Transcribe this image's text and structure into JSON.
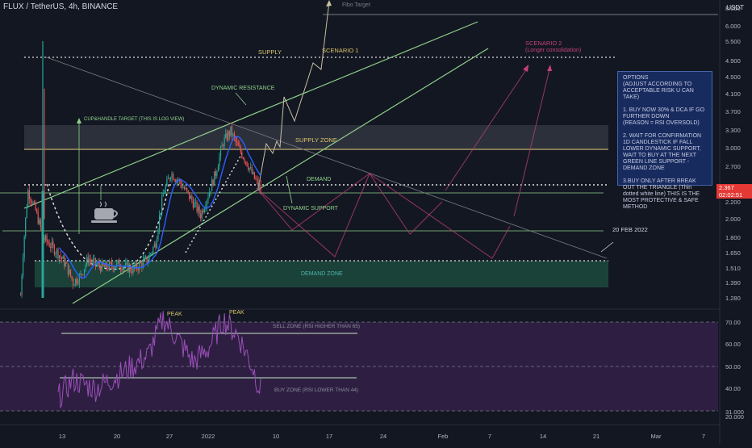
{
  "header": {
    "pair": "FLUX / TetherUS, 4h, BINANCE",
    "currency": "USDT"
  },
  "colors": {
    "background": "#131722",
    "candle_up": "#26a69a",
    "candle_down": "#ef5350",
    "channel": "#8fd18a",
    "supply_line": "#d9c46b",
    "scenario2": "#c2407a",
    "rsi": "#9b4fb8",
    "rsi_band": "#3b2350",
    "demand_zone": "#1e4d40"
  },
  "price_axis": {
    "labels": [
      "8.050",
      "6.000",
      "5.500",
      "4.900",
      "4.500",
      "4.100",
      "3.700",
      "3.300",
      "3.000",
      "2.700",
      "2.200",
      "2.000",
      "1.800",
      "1.650",
      "1.510",
      "1.390",
      "1.280"
    ],
    "current_price": "2.367",
    "countdown": "02:02:51"
  },
  "rsi_axis": {
    "labels": [
      "70.00",
      "60.00",
      "50.00",
      "40.00",
      "31.000",
      "20.000"
    ]
  },
  "time_axis": {
    "labels": [
      "13",
      "20",
      "27",
      "2022",
      "10",
      "17",
      "24",
      "Feb",
      "7",
      "14",
      "21",
      "Mar",
      "7"
    ]
  },
  "annotations": {
    "fibo_target": "Fibo Target",
    "supply": "SUPPLY",
    "scenario1": "SCENARIO 1",
    "scenario2": "SCENARIO 2",
    "scenario2_sub": "(Longer consolidation)",
    "dynamic_resistance": "DYNAMIC RESISTANCE",
    "cup_handle": "CUP&HANDLE TARGET (THIS IS LOG VIEW)",
    "supply_zone": "SUPPLY ZONE",
    "demand": "DEMAND",
    "dynamic_support": "DYNAMIC SUPPORT",
    "date_marker": "20 FEB 2022",
    "demand_zone": "DEMAND ZONE",
    "peak1": "PEAK",
    "peak2": "PEAK",
    "sell_zone": "SELL ZONE (RSI HIGHER THAN 65)",
    "buy_zone": "BUY ZONE (RSI LOWER THAN 44)"
  },
  "options_box": {
    "title": "OPTIONS\n(ADJUST ACCORDING TO ACCEPTABLE RISK U CAN TAKE)",
    "opt1": "1. BUY NOW 30% & DCA IF GO FURTHER DOWN\n(REASON = RSI OVERSOLD)",
    "opt2": "2. WAIT FOR CONFIRMATION\n1D CANDLESTICK IF FALL LOWER DYNAMIC SUPPORT, WAIT TO BUY AT THE NEXT GREEN LINE SUPPORT - DEMAND ZONE",
    "opt3": "3.BUY ONLY AFTER BREAK OUT THE TRIANGLE (Thin dotted white line) THIS IS THE MOST PROTECTIVE & SAFE METHOD"
  },
  "chart_data": {
    "type": "candlestick",
    "title": "FLUX / TetherUS, 4h, BINANCE",
    "close_path": [
      [
        "Dec 7",
        1.3
      ],
      [
        "Dec 8",
        2.35
      ],
      [
        "Dec 9",
        2.1
      ],
      [
        "Dec 10",
        1.8
      ],
      [
        "Dec 12",
        1.65
      ],
      [
        "Dec 13",
        1.55
      ],
      [
        "Dec 14",
        1.4
      ],
      [
        "Dec 15",
        1.45
      ],
      [
        "Dec 16",
        1.6
      ],
      [
        "Dec 17",
        1.55
      ],
      [
        "Dec 18",
        1.52
      ],
      [
        "Dec 20",
        1.55
      ],
      [
        "Dec 22",
        1.5
      ],
      [
        "Dec 24",
        1.6
      ],
      [
        "Dec 25",
        1.75
      ],
      [
        "Dec 26",
        2.3
      ],
      [
        "Dec 27",
        2.6
      ],
      [
        "Dec 28",
        2.5
      ],
      [
        "Dec 30",
        2.2
      ],
      [
        "Dec 31",
        2.05
      ],
      [
        "Jan 1",
        2.3
      ],
      [
        "Jan 2",
        2.6
      ],
      [
        "Jan 3",
        3.1
      ],
      [
        "Jan 4",
        3.3
      ],
      [
        "Jan 5",
        3.0
      ],
      [
        "Jan 6",
        2.8
      ],
      [
        "Jan 7",
        2.55
      ],
      [
        "Jan 8",
        2.37
      ]
    ],
    "rsi_path": [
      [
        "Dec 12",
        36
      ],
      [
        "Dec 14",
        44
      ],
      [
        "Dec 17",
        40
      ],
      [
        "Dec 21",
        48
      ],
      [
        "Dec 24",
        55
      ],
      [
        "Dec 26",
        72
      ],
      [
        "Dec 28",
        62
      ],
      [
        "Dec 30",
        52
      ],
      [
        "Jan 1",
        58
      ],
      [
        "Jan 3",
        71
      ],
      [
        "Jan 5",
        64
      ],
      [
        "Jan 7",
        49
      ],
      [
        "Jan 8",
        39
      ]
    ],
    "levels": {
      "supply_line": 4.9,
      "supply_zone": [
        2.95,
        3.35
      ],
      "demand_line": 2.38,
      "demand_mid": 1.85,
      "demand_zone": [
        1.4,
        1.6
      ]
    },
    "rsi_zones": {
      "sell": 65,
      "buy": 44
    },
    "current_price": 2.367
  }
}
